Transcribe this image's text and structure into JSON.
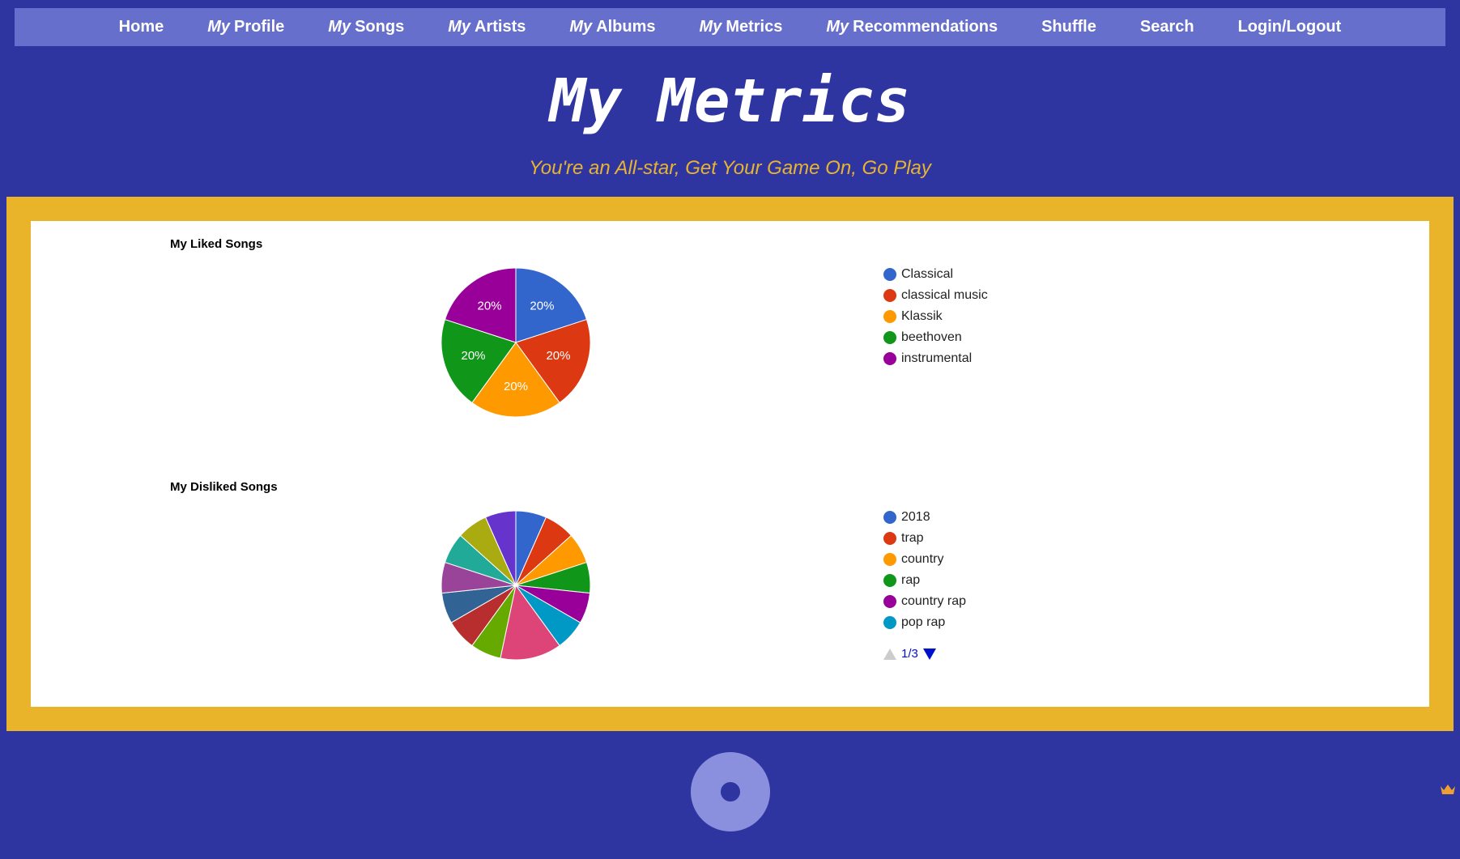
{
  "nav": {
    "items": [
      {
        "text": "Home"
      },
      {
        "em": "My",
        "text": "Profile"
      },
      {
        "em": "My",
        "text": "Songs"
      },
      {
        "em": "My",
        "text": "Artists"
      },
      {
        "em": "My",
        "text": "Albums"
      },
      {
        "em": "My",
        "text": "Metrics"
      },
      {
        "em": "My",
        "text": "Recommendations"
      },
      {
        "text": "Shuffle"
      },
      {
        "text": "Search"
      },
      {
        "text": "Login/Logout"
      }
    ]
  },
  "header": {
    "title": "My Metrics",
    "subtitle": "You're an All-star, Get Your Game On, Go Play"
  },
  "chart_data": [
    {
      "type": "pie",
      "title": "My Liked Songs",
      "categories": [
        "Classical",
        "classical music",
        "Klassik",
        "beethoven",
        "instrumental"
      ],
      "values": [
        20,
        20,
        20,
        20,
        20
      ],
      "value_labels": [
        "20%",
        "20%",
        "20%",
        "20%",
        "20%"
      ],
      "colors": [
        "#3366cc",
        "#dc3912",
        "#ff9900",
        "#109618",
        "#990099"
      ],
      "legend": "right"
    },
    {
      "type": "pie",
      "title": "My Disliked Songs",
      "categories": [
        "2018",
        "trap",
        "country",
        "rap",
        "country rap",
        "pop rap",
        null,
        null,
        null,
        null,
        null,
        null,
        null,
        null
      ],
      "values": [
        6.67,
        6.67,
        6.67,
        6.67,
        6.67,
        6.67,
        13.33,
        6.67,
        6.67,
        6.67,
        6.67,
        6.67,
        6.67,
        6.67
      ],
      "colors": [
        "#3366cc",
        "#dc3912",
        "#ff9900",
        "#109618",
        "#990099",
        "#0099c6",
        "#dd4477",
        "#66aa00",
        "#b82e2e",
        "#316395",
        "#994499",
        "#22aa99",
        "#aaaa11",
        "#6633cc"
      ],
      "legend": "right",
      "legend_page": "1/3"
    }
  ]
}
